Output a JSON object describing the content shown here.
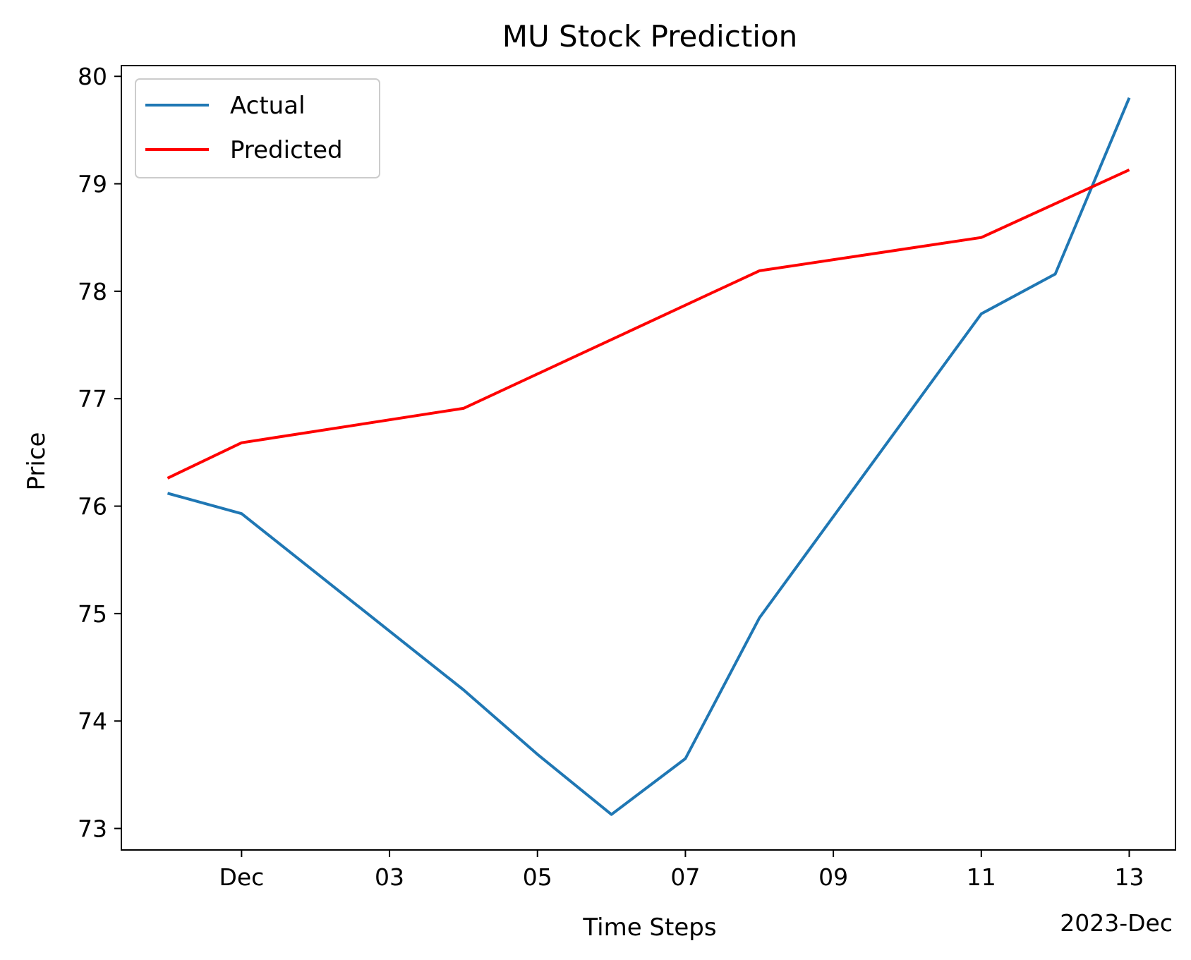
{
  "chart_data": {
    "type": "line",
    "title": "MU Stock Prediction",
    "xlabel": "Time Steps",
    "ylabel": "Price",
    "x_offset_label": "2023-Dec",
    "xlim": [
      "2023-11-29 09:00",
      "2023-12-13 15:00"
    ],
    "ylim": [
      72.8,
      80.1
    ],
    "x_ticks": [
      {
        "value": "2023-12-01",
        "label": "Dec"
      },
      {
        "value": "2023-12-03",
        "label": "03"
      },
      {
        "value": "2023-12-05",
        "label": "05"
      },
      {
        "value": "2023-12-07",
        "label": "07"
      },
      {
        "value": "2023-12-09",
        "label": "09"
      },
      {
        "value": "2023-12-11",
        "label": "11"
      },
      {
        "value": "2023-12-13",
        "label": "13"
      }
    ],
    "y_ticks": [
      {
        "value": 73,
        "label": "73"
      },
      {
        "value": 74,
        "label": "74"
      },
      {
        "value": 75,
        "label": "75"
      },
      {
        "value": 76,
        "label": "76"
      },
      {
        "value": 77,
        "label": "77"
      },
      {
        "value": 78,
        "label": "78"
      },
      {
        "value": 79,
        "label": "79"
      },
      {
        "value": 80,
        "label": "80"
      }
    ],
    "grid": false,
    "legend_position": "top-left",
    "series": [
      {
        "name": "Actual",
        "color": "#1f77b4",
        "x": [
          "2023-11-30",
          "2023-12-01",
          "2023-12-04",
          "2023-12-05",
          "2023-12-06",
          "2023-12-07",
          "2023-12-08",
          "2023-12-11",
          "2023-12-12",
          "2023-12-13"
        ],
        "y": [
          76.12,
          75.93,
          74.29,
          73.69,
          73.13,
          73.65,
          74.96,
          77.79,
          78.16,
          79.8
        ]
      },
      {
        "name": "Predicted",
        "color": "#ff0000",
        "x": [
          "2023-11-30",
          "2023-12-01",
          "2023-12-04",
          "2023-12-08",
          "2023-12-11",
          "2023-12-13"
        ],
        "y": [
          76.26,
          76.59,
          76.91,
          78.19,
          78.5,
          79.13
        ]
      }
    ]
  }
}
